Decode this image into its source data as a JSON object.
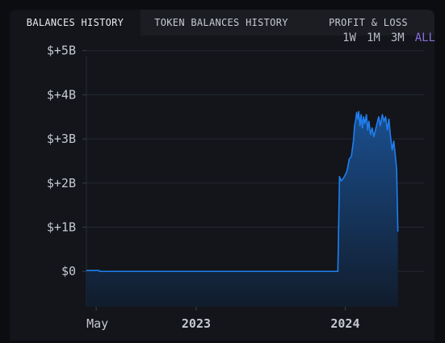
{
  "tabs": [
    {
      "label": "BALANCES HISTORY",
      "active": true
    },
    {
      "label": "TOKEN BALANCES HISTORY",
      "active": false
    },
    {
      "label": "PROFIT & LOSS",
      "active": false
    }
  ],
  "ranges": [
    {
      "label": "1W",
      "active": false
    },
    {
      "label": "1M",
      "active": false
    },
    {
      "label": "3M",
      "active": false
    },
    {
      "label": "ALL",
      "active": true
    }
  ],
  "colors": {
    "line": "#1f7ff0",
    "fill_top": "#1a4f8f",
    "fill_bottom": "#111c2c",
    "active_range": "#8a6ddc"
  },
  "chart_data": {
    "type": "area",
    "title": "",
    "xlabel": "",
    "ylabel": "",
    "y_ticks": [
      {
        "value": 0,
        "label": "$0"
      },
      {
        "value": 1,
        "label": "$+1B"
      },
      {
        "value": 2,
        "label": "$+2B"
      },
      {
        "value": 3,
        "label": "$+3B"
      },
      {
        "value": 4,
        "label": "$+4B"
      },
      {
        "value": 5,
        "label": "$+5B"
      }
    ],
    "x_ticks": [
      {
        "value": "2022-05-01",
        "label": "May",
        "bold": false
      },
      {
        "value": "2023-01-01",
        "label": "2023",
        "bold": true
      },
      {
        "value": "2024-01-01",
        "label": "2024",
        "bold": true
      }
    ],
    "xlim": [
      "2022-04-07",
      "2024-07-12"
    ],
    "ylim": [
      -0.8,
      5.05
    ],
    "grid": true,
    "series": [
      {
        "points": [
          [
            "2022-04-07",
            0.02
          ],
          [
            "2022-05-08",
            0.02
          ],
          [
            "2022-05-09",
            0.0
          ],
          [
            "2023-12-14",
            0.0
          ],
          [
            "2023-12-18",
            2.15
          ],
          [
            "2023-12-22",
            2.05
          ],
          [
            "2023-12-27",
            2.1
          ],
          [
            "2024-01-02",
            2.2
          ],
          [
            "2024-01-06",
            2.3
          ],
          [
            "2024-01-11",
            2.55
          ],
          [
            "2024-01-16",
            2.6
          ],
          [
            "2024-01-21",
            2.95
          ],
          [
            "2024-01-24",
            3.3
          ],
          [
            "2024-01-27",
            3.45
          ],
          [
            "2024-01-29",
            3.6
          ],
          [
            "2024-02-01",
            3.45
          ],
          [
            "2024-02-03",
            3.62
          ],
          [
            "2024-02-06",
            3.3
          ],
          [
            "2024-02-09",
            3.55
          ],
          [
            "2024-02-12",
            3.25
          ],
          [
            "2024-02-15",
            3.5
          ],
          [
            "2024-02-18",
            3.35
          ],
          [
            "2024-02-22",
            3.55
          ],
          [
            "2024-02-25",
            3.2
          ],
          [
            "2024-02-28",
            3.4
          ],
          [
            "2024-03-03",
            3.1
          ],
          [
            "2024-03-07",
            3.25
          ],
          [
            "2024-03-11",
            3.05
          ],
          [
            "2024-03-15",
            3.2
          ],
          [
            "2024-03-19",
            3.35
          ],
          [
            "2024-03-23",
            3.5
          ],
          [
            "2024-03-27",
            3.3
          ],
          [
            "2024-04-01",
            3.55
          ],
          [
            "2024-04-05",
            3.4
          ],
          [
            "2024-04-09",
            3.5
          ],
          [
            "2024-04-13",
            3.2
          ],
          [
            "2024-04-17",
            3.45
          ],
          [
            "2024-04-21",
            3.05
          ],
          [
            "2024-04-25",
            2.75
          ],
          [
            "2024-04-29",
            2.95
          ],
          [
            "2024-05-03",
            2.6
          ],
          [
            "2024-05-06",
            2.3
          ],
          [
            "2024-05-09",
            0.9
          ]
        ]
      }
    ]
  }
}
